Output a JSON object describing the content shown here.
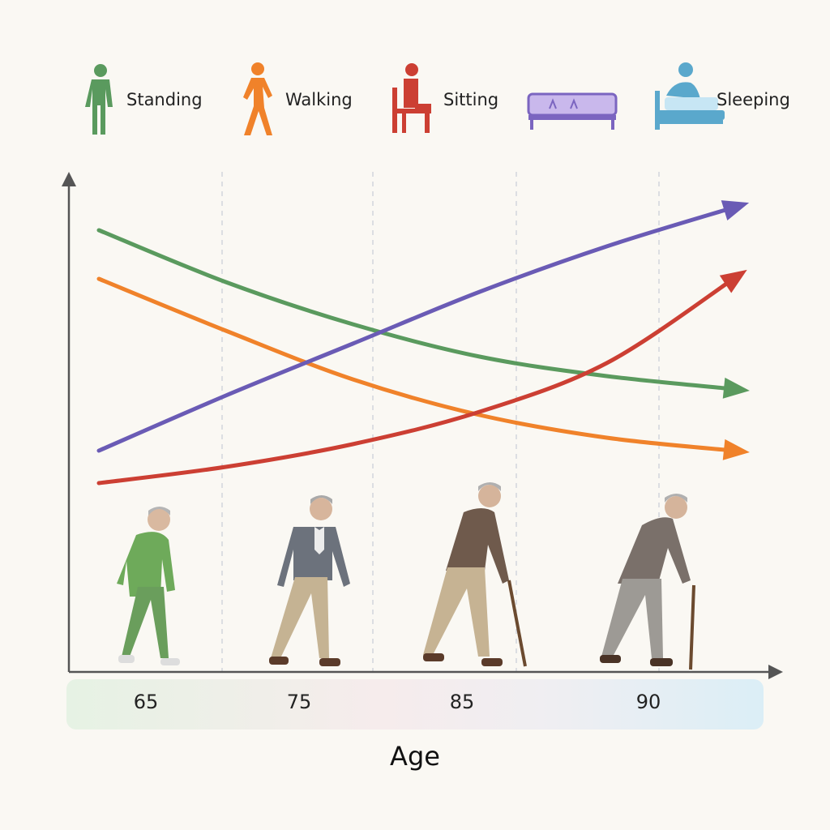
{
  "colors": {
    "standing": "#5a9a5e",
    "walking": "#f0822a",
    "sitting": "#cc3f33",
    "sleeping": "#6a5bb5",
    "axis": "#555555",
    "band_left": "#e6f2e4",
    "band_mid": "#f6ecec",
    "band_right": "#dbeef6"
  },
  "legend": [
    {
      "label": "Standing",
      "icon": "standing-person-icon",
      "color": "#5a9a5e"
    },
    {
      "label": "Walking",
      "icon": "walking-person-icon",
      "color": "#f0822a"
    },
    {
      "label": "Sitting",
      "icon": "sitting-person-icon",
      "color": "#cc3f33"
    },
    {
      "label": "",
      "icon": "bed-icon",
      "color": "#7b65c0"
    },
    {
      "label": "Sleeping",
      "icon": "sleeping-person-icon",
      "color": "#5aa8cc"
    }
  ],
  "chart_data": {
    "type": "line",
    "title": "",
    "xlabel": "Age",
    "ylabel": "",
    "categories": [
      "65",
      "75",
      "85",
      "90"
    ],
    "xlim": [
      0,
      100
    ],
    "ylim": [
      0,
      100
    ],
    "grid": "vertical dashed lines",
    "legend_position": "top",
    "series": [
      {
        "color": "#5a9a5e",
        "x": [
          0,
          20,
          40,
          60,
          80,
          100
        ],
        "y": [
          89,
          73,
          60,
          50,
          44,
          40
        ]
      },
      {
        "color": "#f0822a",
        "x": [
          0,
          20,
          40,
          60,
          80,
          100
        ],
        "y": [
          74,
          58,
          43,
          32,
          25,
          21
        ]
      },
      {
        "color": "#6a5bb5",
        "x": [
          0,
          20,
          40,
          60,
          80,
          100
        ],
        "y": [
          21,
          38,
          54,
          70,
          84,
          96
        ]
      },
      {
        "color": "#cc3f33",
        "x": [
          0,
          20,
          40,
          60,
          80,
          100
        ],
        "y": [
          11,
          16,
          23,
          33,
          48,
          74
        ]
      }
    ]
  }
}
